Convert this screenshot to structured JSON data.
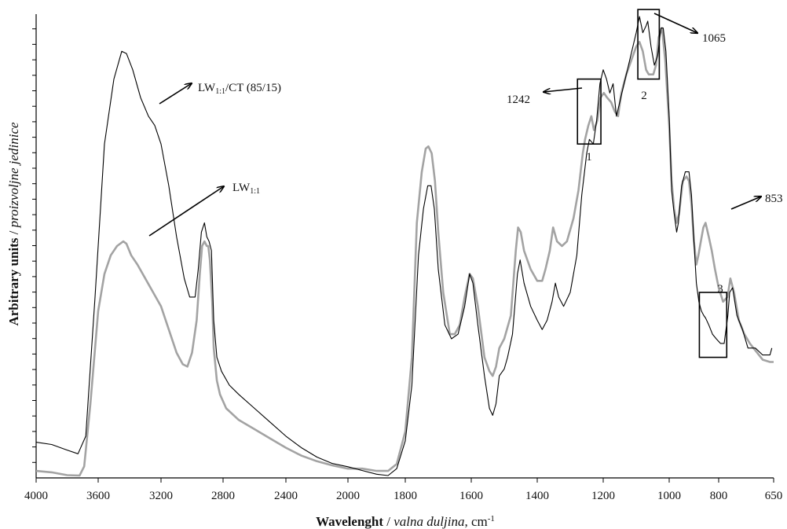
{
  "chart_data": {
    "type": "line",
    "title": "",
    "xlabel": {
      "bold": "Wavelenght",
      "sep": " / ",
      "italic": "valna duljina",
      "unit_prefix": ", cm",
      "unit_sup": "-1"
    },
    "ylabel": {
      "bold": "Arbitrary units",
      "sep": " / ",
      "italic": "proizvoljne jedinice"
    },
    "xlim": [
      4000,
      650
    ],
    "x_axis_reversed": true,
    "y_ticks_labeled": false,
    "x_ticks": [
      {
        "value": 4000,
        "label": "4000"
      },
      {
        "value": 3600,
        "label": "3600"
      },
      {
        "value": 3200,
        "label": "3200"
      },
      {
        "value": 2800,
        "label": "2800"
      },
      {
        "value": 2400,
        "label": "2400"
      },
      {
        "value": 2000,
        "label": "2000"
      },
      {
        "value": 1800,
        "label": "1800"
      },
      {
        "value": 1600,
        "label": "1600"
      },
      {
        "value": 1400,
        "label": "1400"
      },
      {
        "value": 1200,
        "label": "1200"
      },
      {
        "value": 1000,
        "label": "1000"
      },
      {
        "value": 800,
        "label": "800"
      },
      {
        "value": 650,
        "label": "650"
      }
    ],
    "ylim": [
      0,
      100
    ],
    "series": [
      {
        "name": "LW1:1/CT (85/15)",
        "label_main": "LW",
        "label_sub": "1:1",
        "label_rest": "/CT (85/15)",
        "color": "#000000",
        "points": [
          [
            4000,
            7.7
          ],
          [
            3900,
            7.2
          ],
          [
            3800,
            6.0
          ],
          [
            3730,
            5.2
          ],
          [
            3680,
            9.0
          ],
          [
            3620,
            39
          ],
          [
            3560,
            72
          ],
          [
            3500,
            86
          ],
          [
            3450,
            92
          ],
          [
            3420,
            91.5
          ],
          [
            3380,
            88
          ],
          [
            3330,
            82
          ],
          [
            3280,
            78
          ],
          [
            3240,
            76
          ],
          [
            3200,
            72
          ],
          [
            3150,
            63
          ],
          [
            3100,
            52
          ],
          [
            3050,
            43
          ],
          [
            3015,
            39
          ],
          [
            2980,
            39
          ],
          [
            2960,
            45
          ],
          [
            2940,
            53
          ],
          [
            2920,
            55
          ],
          [
            2905,
            52
          ],
          [
            2890,
            51
          ],
          [
            2875,
            49
          ],
          [
            2860,
            34
          ],
          [
            2840,
            26
          ],
          [
            2810,
            23
          ],
          [
            2760,
            20
          ],
          [
            2700,
            18
          ],
          [
            2600,
            15
          ],
          [
            2500,
            12
          ],
          [
            2400,
            9
          ],
          [
            2300,
            6.5
          ],
          [
            2200,
            4.5
          ],
          [
            2100,
            3.1
          ],
          [
            2000,
            2.4
          ],
          [
            1950,
            1.6
          ],
          [
            1900,
            0.8
          ],
          [
            1860,
            0.5
          ],
          [
            1830,
            2.0
          ],
          [
            1800,
            8
          ],
          [
            1780,
            20
          ],
          [
            1760,
            48
          ],
          [
            1745,
            58
          ],
          [
            1732,
            63
          ],
          [
            1722,
            63
          ],
          [
            1712,
            58
          ],
          [
            1700,
            45
          ],
          [
            1680,
            33
          ],
          [
            1660,
            30
          ],
          [
            1640,
            31
          ],
          [
            1620,
            37
          ],
          [
            1605,
            44
          ],
          [
            1595,
            42
          ],
          [
            1580,
            33
          ],
          [
            1560,
            22
          ],
          [
            1545,
            15
          ],
          [
            1535,
            13.5
          ],
          [
            1525,
            16
          ],
          [
            1515,
            22
          ],
          [
            1500,
            23.5
          ],
          [
            1490,
            26
          ],
          [
            1475,
            31
          ],
          [
            1460,
            44
          ],
          [
            1452,
            47
          ],
          [
            1440,
            42
          ],
          [
            1420,
            37
          ],
          [
            1400,
            34
          ],
          [
            1385,
            32
          ],
          [
            1370,
            34
          ],
          [
            1355,
            38
          ],
          [
            1345,
            42
          ],
          [
            1335,
            39
          ],
          [
            1320,
            37
          ],
          [
            1300,
            40
          ],
          [
            1280,
            48
          ],
          [
            1265,
            61
          ],
          [
            1250,
            70
          ],
          [
            1242,
            73
          ],
          [
            1230,
            72
          ],
          [
            1220,
            77
          ],
          [
            1210,
            85
          ],
          [
            1200,
            88
          ],
          [
            1190,
            86
          ],
          [
            1180,
            83
          ],
          [
            1170,
            85
          ],
          [
            1160,
            78
          ],
          [
            1150,
            81
          ],
          [
            1140,
            84
          ],
          [
            1120,
            90
          ],
          [
            1100,
            96
          ],
          [
            1090,
            99.5
          ],
          [
            1080,
            96
          ],
          [
            1070,
            97.5
          ],
          [
            1065,
            98.5
          ],
          [
            1055,
            93
          ],
          [
            1045,
            89
          ],
          [
            1035,
            91
          ],
          [
            1025,
            97
          ],
          [
            1018,
            97
          ],
          [
            1010,
            92
          ],
          [
            1000,
            78
          ],
          [
            990,
            62
          ],
          [
            980,
            57
          ],
          [
            970,
            53
          ],
          [
            963,
            55
          ],
          [
            950,
            63
          ],
          [
            935,
            66
          ],
          [
            920,
            66
          ],
          [
            910,
            61
          ],
          [
            900,
            51
          ],
          [
            890,
            42
          ],
          [
            880,
            38
          ],
          [
            870,
            36
          ],
          [
            860,
            35
          ],
          [
            853,
            34.5
          ],
          [
            840,
            33
          ],
          [
            825,
            31
          ],
          [
            810,
            30
          ],
          [
            795,
            29
          ],
          [
            785,
            29
          ],
          [
            775,
            35
          ],
          [
            770,
            40
          ],
          [
            762,
            41
          ],
          [
            750,
            35
          ],
          [
            735,
            32
          ],
          [
            720,
            28
          ],
          [
            700,
            28
          ],
          [
            680,
            26.5
          ],
          [
            660,
            26.5
          ],
          [
            655,
            28
          ]
        ]
      },
      {
        "name": "LW1:1",
        "label_main": "LW",
        "label_sub": "1:1",
        "label_rest": "",
        "color": "#a3a3a3",
        "points": [
          [
            4000,
            1.5
          ],
          [
            3900,
            1.2
          ],
          [
            3800,
            0.6
          ],
          [
            3720,
            0.5
          ],
          [
            3690,
            2.5
          ],
          [
            3650,
            16
          ],
          [
            3600,
            36
          ],
          [
            3560,
            44
          ],
          [
            3520,
            48
          ],
          [
            3480,
            50
          ],
          [
            3440,
            51
          ],
          [
            3420,
            50.5
          ],
          [
            3390,
            48
          ],
          [
            3350,
            46
          ],
          [
            3300,
            43
          ],
          [
            3250,
            40
          ],
          [
            3200,
            37
          ],
          [
            3150,
            32
          ],
          [
            3100,
            27
          ],
          [
            3060,
            24.5
          ],
          [
            3030,
            24
          ],
          [
            3000,
            27
          ],
          [
            2970,
            34
          ],
          [
            2950,
            44
          ],
          [
            2935,
            50
          ],
          [
            2920,
            51
          ],
          [
            2905,
            50
          ],
          [
            2895,
            50
          ],
          [
            2885,
            47
          ],
          [
            2870,
            38
          ],
          [
            2860,
            28
          ],
          [
            2840,
            21
          ],
          [
            2820,
            18
          ],
          [
            2780,
            15
          ],
          [
            2700,
            12.5
          ],
          [
            2600,
            10.5
          ],
          [
            2500,
            8.5
          ],
          [
            2400,
            6.5
          ],
          [
            2300,
            4.8
          ],
          [
            2200,
            3.6
          ],
          [
            2100,
            2.7
          ],
          [
            2000,
            2.0
          ],
          [
            1950,
            2.0
          ],
          [
            1900,
            1.5
          ],
          [
            1860,
            1.5
          ],
          [
            1830,
            3.0
          ],
          [
            1800,
            10
          ],
          [
            1780,
            26
          ],
          [
            1765,
            55
          ],
          [
            1750,
            66
          ],
          [
            1738,
            71
          ],
          [
            1730,
            71.5
          ],
          [
            1720,
            70
          ],
          [
            1710,
            64
          ],
          [
            1700,
            53
          ],
          [
            1685,
            40
          ],
          [
            1665,
            31
          ],
          [
            1650,
            31
          ],
          [
            1635,
            33
          ],
          [
            1620,
            39
          ],
          [
            1605,
            44
          ],
          [
            1595,
            43
          ],
          [
            1580,
            37
          ],
          [
            1560,
            26
          ],
          [
            1545,
            23
          ],
          [
            1535,
            22
          ],
          [
            1525,
            24
          ],
          [
            1515,
            28
          ],
          [
            1500,
            30
          ],
          [
            1480,
            35
          ],
          [
            1465,
            49
          ],
          [
            1458,
            54
          ],
          [
            1450,
            53
          ],
          [
            1440,
            49
          ],
          [
            1420,
            45
          ],
          [
            1400,
            42.5
          ],
          [
            1385,
            42.5
          ],
          [
            1375,
            45
          ],
          [
            1362,
            49
          ],
          [
            1352,
            54
          ],
          [
            1340,
            51
          ],
          [
            1325,
            50
          ],
          [
            1310,
            51
          ],
          [
            1290,
            56
          ],
          [
            1275,
            62
          ],
          [
            1262,
            70
          ],
          [
            1255,
            73
          ],
          [
            1245,
            76
          ],
          [
            1236,
            78
          ],
          [
            1228,
            75
          ],
          [
            1218,
            77
          ],
          [
            1208,
            82
          ],
          [
            1198,
            83
          ],
          [
            1188,
            82
          ],
          [
            1176,
            81
          ],
          [
            1165,
            79
          ],
          [
            1155,
            78
          ],
          [
            1145,
            83
          ],
          [
            1130,
            87
          ],
          [
            1115,
            90
          ],
          [
            1100,
            93
          ],
          [
            1090,
            94
          ],
          [
            1080,
            92
          ],
          [
            1070,
            88
          ],
          [
            1062,
            87
          ],
          [
            1055,
            87
          ],
          [
            1048,
            87
          ],
          [
            1040,
            89
          ],
          [
            1032,
            95
          ],
          [
            1022,
            97
          ],
          [
            1012,
            90
          ],
          [
            1000,
            76
          ],
          [
            990,
            64
          ],
          [
            980,
            58
          ],
          [
            970,
            55
          ],
          [
            960,
            57
          ],
          [
            945,
            64
          ],
          [
            930,
            65
          ],
          [
            920,
            64
          ],
          [
            910,
            59
          ],
          [
            900,
            51
          ],
          [
            890,
            46
          ],
          [
            882,
            48
          ],
          [
            872,
            51
          ],
          [
            862,
            54
          ],
          [
            853,
            55
          ],
          [
            840,
            52
          ],
          [
            828,
            49
          ],
          [
            815,
            45
          ],
          [
            800,
            41
          ],
          [
            788,
            38
          ],
          [
            776,
            39
          ],
          [
            768,
            43
          ],
          [
            758,
            40
          ],
          [
            745,
            34
          ],
          [
            730,
            31
          ],
          [
            715,
            29
          ],
          [
            700,
            27.5
          ],
          [
            680,
            25.5
          ],
          [
            660,
            25
          ],
          [
            650,
            25
          ]
        ]
      }
    ],
    "annotations": {
      "series_labels": [
        {
          "series": 0,
          "text_main": "LW",
          "text_sub": "1:1",
          "text_rest": "/CT (85/15)"
        },
        {
          "series": 1,
          "text_main": "LW",
          "text_sub": "1:1",
          "text_rest": ""
        }
      ],
      "peaks": [
        {
          "label": "1242",
          "x": 1242
        },
        {
          "label": "1065",
          "x": 1065
        },
        {
          "label": "853",
          "x": 853
        }
      ],
      "boxes": [
        {
          "label": "1",
          "x_from": 1278,
          "x_to": 1207,
          "y_from": 72,
          "y_to": 86
        },
        {
          "label": "2",
          "x_from": 1095,
          "x_to": 1030,
          "y_from": 86,
          "y_to": 101
        },
        {
          "label": "3",
          "x_from": 878,
          "x_to": 778,
          "y_from": 26,
          "y_to": 40
        }
      ]
    },
    "grid": false,
    "legend": "none"
  }
}
